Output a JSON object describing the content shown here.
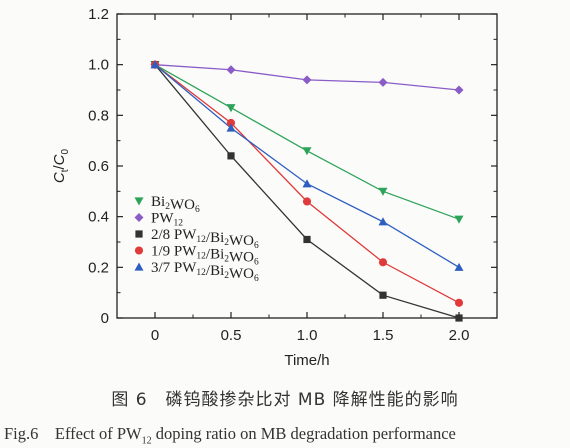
{
  "chart_data": {
    "type": "line",
    "xlabel": "Time/h",
    "ylabel": "Ct/C0",
    "xlim": [
      -0.25,
      2.25
    ],
    "ylim": [
      0,
      1.2
    ],
    "xticks": [
      "0",
      "0.5",
      "1.0",
      "1.5",
      "2.0"
    ],
    "xtick_values": [
      0,
      0.5,
      1.0,
      1.5,
      2.0
    ],
    "yticks": [
      "0",
      "0.2",
      "0.4",
      "0.6",
      "0.8",
      "1.0",
      "1.2"
    ],
    "ytick_values": [
      0,
      0.2,
      0.4,
      0.6,
      0.8,
      1.0,
      1.2
    ],
    "grid": false,
    "legend_position": "lower-left",
    "x": [
      0,
      0.5,
      1.0,
      1.5,
      2.0
    ],
    "series": [
      {
        "name": "Bi2WO6",
        "marker": "triangle-down",
        "color": "#2ea35a",
        "values": [
          1.0,
          0.83,
          0.66,
          0.5,
          0.39
        ]
      },
      {
        "name": "PW12",
        "marker": "diamond",
        "color": "#8a5cc8",
        "values": [
          1.0,
          0.98,
          0.94,
          0.93,
          0.9
        ]
      },
      {
        "name": "2/8 PW12/Bi2WO6",
        "marker": "square",
        "color": "#333333",
        "values": [
          1.0,
          0.64,
          0.31,
          0.09,
          0.0
        ]
      },
      {
        "name": "1/9 PW12/Bi2WO6",
        "marker": "circle",
        "color": "#e03a3a",
        "values": [
          1.0,
          0.77,
          0.46,
          0.22,
          0.06
        ]
      },
      {
        "name": "3/7 PW12/Bi2WO6",
        "marker": "triangle-up",
        "color": "#2e5fc0",
        "values": [
          1.0,
          0.75,
          0.53,
          0.38,
          0.2
        ]
      }
    ]
  },
  "caption": {
    "cn": "图 6　磷钨酸掺杂比对 MB 降解性能的影响",
    "en": "Fig.6　Effect of PW12 doping ratio on MB degradation performance"
  }
}
